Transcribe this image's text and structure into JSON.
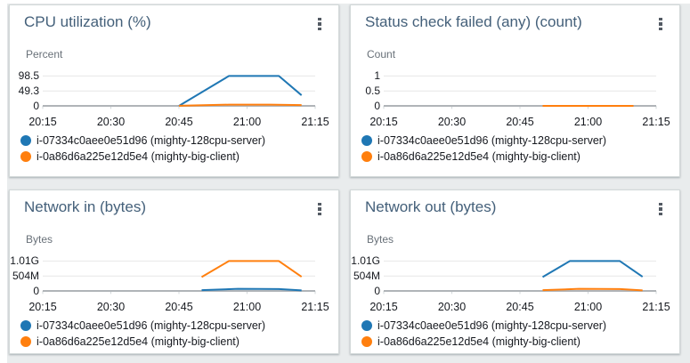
{
  "chart_data": [
    {
      "type": "line",
      "title": "CPU utilization (%)",
      "ylabel": "Percent",
      "y_ticks": [
        "98.5",
        "49.3",
        "0"
      ],
      "ylim": [
        0,
        98.5
      ],
      "x_ticks": [
        "20:15",
        "20:30",
        "20:45",
        "21:00",
        "21:15"
      ],
      "xlim": [
        "20:15",
        "21:15"
      ],
      "grid": "horizontal",
      "legend_position": "bottom",
      "series": [
        {
          "name": "i-07334c0aee0e51d96 (mighty-128cpu-server)",
          "color": "#1f77b4",
          "points": [
            [
              "20:45",
              0
            ],
            [
              "20:56",
              98.5
            ],
            [
              "21:07",
              98.5
            ],
            [
              "21:12",
              35
            ]
          ]
        },
        {
          "name": "i-0a86d6a225e12d5e4 (mighty-big-client)",
          "color": "#ff7f0e",
          "points": [
            [
              "20:45",
              0.5
            ],
            [
              "20:56",
              4
            ],
            [
              "21:05",
              4
            ],
            [
              "21:12",
              2.5
            ]
          ]
        }
      ]
    },
    {
      "type": "line",
      "title": "Status check failed (any) (count)",
      "ylabel": "Count",
      "y_ticks": [
        "1",
        "0.5",
        "0"
      ],
      "ylim": [
        0,
        1
      ],
      "x_ticks": [
        "20:15",
        "20:30",
        "20:45",
        "21:00",
        "21:15"
      ],
      "xlim": [
        "20:15",
        "21:15"
      ],
      "grid": "horizontal",
      "legend_position": "bottom",
      "series": [
        {
          "name": "i-07334c0aee0e51d96 (mighty-128cpu-server)",
          "color": "#1f77b4",
          "points": [
            [
              "20:50",
              0
            ],
            [
              "21:10",
              0
            ]
          ]
        },
        {
          "name": "i-0a86d6a225e12d5e4 (mighty-big-client)",
          "color": "#ff7f0e",
          "points": [
            [
              "20:50",
              0
            ],
            [
              "21:10",
              0
            ]
          ]
        }
      ]
    },
    {
      "type": "line",
      "title": "Network in (bytes)",
      "ylabel": "Bytes",
      "y_ticks": [
        "1.01G",
        "504M",
        "0"
      ],
      "ylim": [
        0,
        1010000000
      ],
      "x_ticks": [
        "20:15",
        "20:30",
        "20:45",
        "21:00",
        "21:15"
      ],
      "xlim": [
        "20:15",
        "21:15"
      ],
      "grid": "horizontal",
      "legend_position": "bottom",
      "series": [
        {
          "name": "i-07334c0aee0e51d96 (mighty-128cpu-server)",
          "color": "#1f77b4",
          "points": [
            [
              "20:50",
              25000000
            ],
            [
              "20:58",
              70000000
            ],
            [
              "21:07",
              65000000
            ],
            [
              "21:12",
              20000000
            ]
          ]
        },
        {
          "name": "i-0a86d6a225e12d5e4 (mighty-big-client)",
          "color": "#ff7f0e",
          "points": [
            [
              "20:50",
              470000000
            ],
            [
              "20:56",
              1010000000
            ],
            [
              "21:07",
              1010000000
            ],
            [
              "21:12",
              480000000
            ]
          ]
        }
      ]
    },
    {
      "type": "line",
      "title": "Network out (bytes)",
      "ylabel": "Bytes",
      "y_ticks": [
        "1.01G",
        "504M",
        "0"
      ],
      "ylim": [
        0,
        1010000000
      ],
      "x_ticks": [
        "20:15",
        "20:30",
        "20:45",
        "21:00",
        "21:15"
      ],
      "xlim": [
        "20:15",
        "21:15"
      ],
      "grid": "horizontal",
      "legend_position": "bottom",
      "series": [
        {
          "name": "i-07334c0aee0e51d96 (mighty-128cpu-server)",
          "color": "#1f77b4",
          "points": [
            [
              "20:50",
              470000000
            ],
            [
              "20:56",
              1010000000
            ],
            [
              "21:07",
              1010000000
            ],
            [
              "21:12",
              480000000
            ]
          ]
        },
        {
          "name": "i-0a86d6a225e12d5e4 (mighty-big-client)",
          "color": "#ff7f0e",
          "points": [
            [
              "20:50",
              25000000
            ],
            [
              "20:58",
              70000000
            ],
            [
              "21:07",
              65000000
            ],
            [
              "21:12",
              20000000
            ]
          ]
        }
      ]
    }
  ],
  "icons": {
    "panel_menu": "kebab-menu-icon"
  },
  "colors": {
    "series_blue": "#1f77b4",
    "series_orange": "#ff7f0e",
    "title_text": "#44607a",
    "axis_line": "#b0b4b8"
  }
}
